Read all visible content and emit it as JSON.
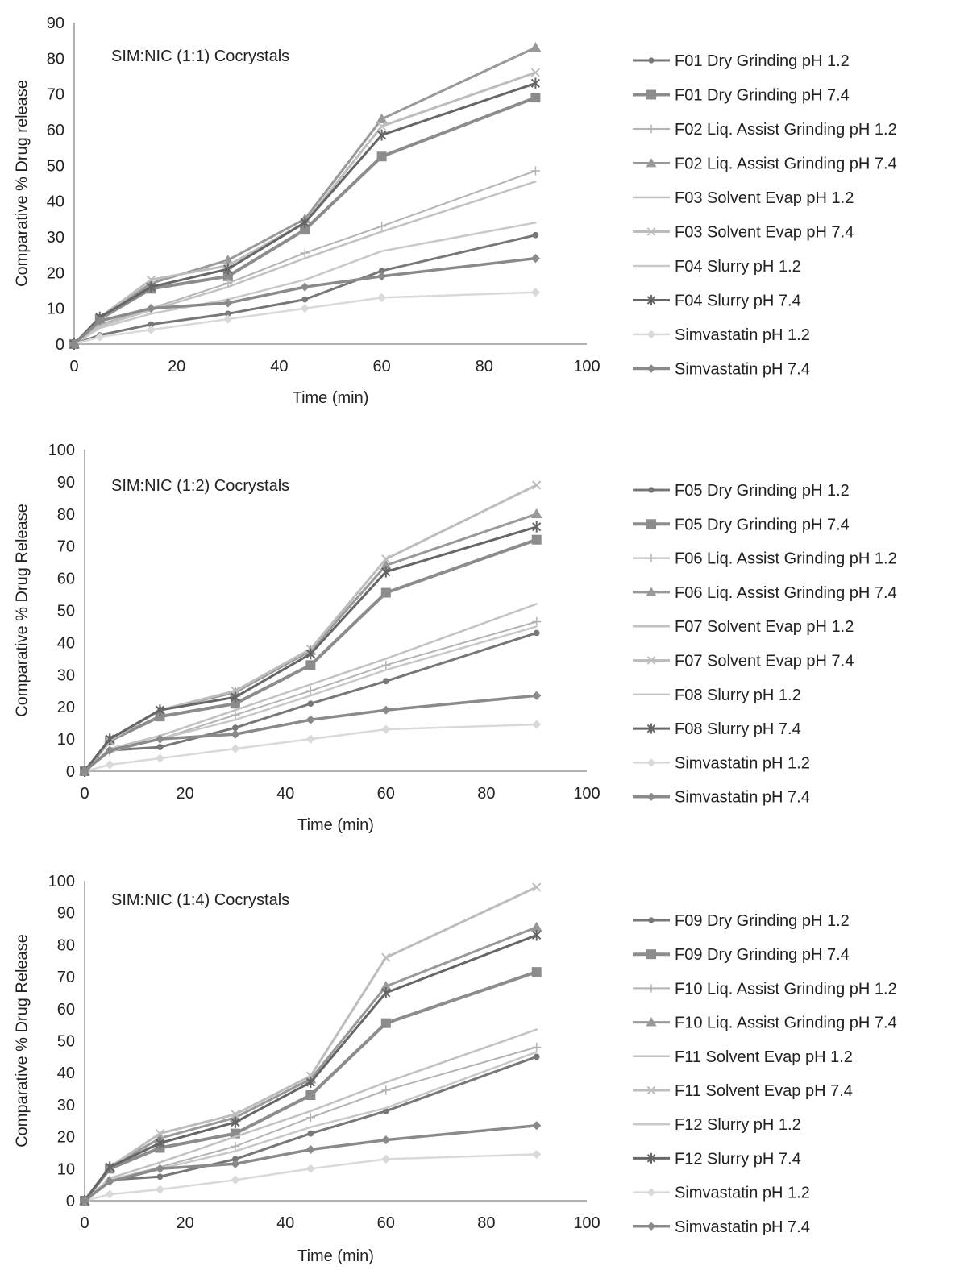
{
  "chart_data": [
    {
      "type": "line",
      "title": "SIM:NIC (1:1) Cocrystals",
      "xlabel": "Time (min)",
      "ylabel": "Comparative % Drug release",
      "x": [
        0,
        5,
        15,
        30,
        45,
        60,
        90
      ],
      "xlim": [
        0,
        100
      ],
      "ylim": [
        0,
        90
      ],
      "xticks": [
        "0",
        "20",
        "40",
        "60",
        "80",
        "100"
      ],
      "yticks": [
        "0",
        "10",
        "20",
        "30",
        "40",
        "50",
        "60",
        "70",
        "80",
        "90"
      ],
      "grid": false,
      "legend_position": "right",
      "series": [
        {
          "name": "F01 Dry Grinding pH 1.2",
          "values": [
            0,
            2.5,
            5.5,
            8.5,
            12.5,
            20.5,
            30.5
          ]
        },
        {
          "name": "F01 Dry Grinding pH 7.4",
          "values": [
            0,
            7,
            15.5,
            19,
            32,
            52.5,
            69
          ]
        },
        {
          "name": "F02 Liq. Assist Grinding pH 1.2",
          "values": [
            0,
            5.5,
            10,
            17,
            25.5,
            33,
            48.5
          ]
        },
        {
          "name": "F02 Liq. Assist Grinding pH 7.4",
          "values": [
            0,
            7,
            17,
            23.5,
            35,
            63,
            83
          ]
        },
        {
          "name": "F03 Solvent Evap pH 1.2",
          "values": [
            0,
            5,
            9.5,
            16,
            24,
            31.5,
            45.5
          ]
        },
        {
          "name": "F03 Solvent Evap pH 7.4",
          "values": [
            0,
            7.5,
            18,
            22,
            34,
            61,
            76
          ]
        },
        {
          "name": "F04 Slurry pH 1.2",
          "values": [
            0,
            4.5,
            8.5,
            12.5,
            18,
            26,
            34
          ]
        },
        {
          "name": "F04 Slurry pH 7.4",
          "values": [
            0,
            7.5,
            16,
            21,
            34,
            58.5,
            73
          ]
        },
        {
          "name": "Simvastatin pH 1.2",
          "values": [
            0,
            2,
            4,
            7,
            10,
            13,
            14.5
          ]
        },
        {
          "name": "Simvastatin pH 7.4",
          "values": [
            0,
            6.5,
            10,
            11.5,
            16,
            19,
            24
          ]
        }
      ]
    },
    {
      "type": "line",
      "title": "SIM:NIC (1:2) Cocrystals",
      "xlabel": "Time (min)",
      "ylabel": "Comparative % Drug Release",
      "x": [
        0,
        5,
        15,
        30,
        45,
        60,
        90
      ],
      "xlim": [
        0,
        100
      ],
      "ylim": [
        0,
        100
      ],
      "xticks": [
        "0",
        "20",
        "40",
        "60",
        "80",
        "100"
      ],
      "yticks": [
        "0",
        "10",
        "20",
        "30",
        "40",
        "50",
        "60",
        "70",
        "80",
        "90",
        "100"
      ],
      "grid": false,
      "legend_position": "right",
      "series": [
        {
          "name": "F05 Dry Grinding pH 1.2",
          "values": [
            0,
            6.5,
            7.5,
            13.5,
            21,
            28,
            43
          ]
        },
        {
          "name": "F05 Dry Grinding pH 7.4",
          "values": [
            0,
            9.5,
            17,
            21,
            33,
            55.5,
            72
          ]
        },
        {
          "name": "F06 Liq. Assist Grinding pH 1.2",
          "values": [
            0,
            6,
            10,
            17.5,
            25,
            33,
            46.5
          ]
        },
        {
          "name": "F06 Liq. Assist Grinding pH 7.4",
          "values": [
            0,
            10,
            19,
            24.5,
            37.5,
            64,
            80
          ]
        },
        {
          "name": "F07 Solvent Evap pH 1.2",
          "values": [
            0,
            7,
            11,
            19,
            27,
            35,
            52
          ]
        },
        {
          "name": "F07 Solvent Evap pH 7.4",
          "values": [
            0,
            9.5,
            19,
            25,
            38,
            66,
            89
          ]
        },
        {
          "name": "F08 Slurry pH 1.2",
          "values": [
            0,
            6.5,
            10,
            16,
            23.5,
            31.5,
            45
          ]
        },
        {
          "name": "F08 Slurry pH 7.4",
          "values": [
            0,
            10,
            19,
            23,
            36.5,
            62,
            76
          ]
        },
        {
          "name": "Simvastatin pH 1.2",
          "values": [
            0,
            2,
            4,
            7,
            10,
            13,
            14.5
          ]
        },
        {
          "name": "Simvastatin pH 7.4",
          "values": [
            0,
            6.5,
            10,
            11.5,
            16,
            19,
            23.5
          ]
        }
      ]
    },
    {
      "type": "line",
      "title": "SIM:NIC (1:4) Cocrystals",
      "xlabel": "Time (min)",
      "ylabel": "Comparative % Drug Release",
      "x": [
        0,
        5,
        15,
        30,
        45,
        60,
        90
      ],
      "xlim": [
        0,
        100
      ],
      "ylim": [
        0,
        100
      ],
      "xticks": [
        "0",
        "20",
        "40",
        "60",
        "80",
        "100"
      ],
      "yticks": [
        "0",
        "10",
        "20",
        "30",
        "40",
        "50",
        "60",
        "70",
        "80",
        "90",
        "100"
      ],
      "grid": false,
      "legend_position": "right",
      "series": [
        {
          "name": "F09 Dry Grinding pH 1.2",
          "values": [
            0,
            6.5,
            7.5,
            13,
            21,
            28,
            45
          ]
        },
        {
          "name": "F09 Dry Grinding pH 7.4",
          "values": [
            0,
            10,
            16.5,
            21,
            33,
            55.5,
            71.5
          ]
        },
        {
          "name": "F10 Liq. Assist Grinding pH 1.2",
          "values": [
            0,
            6.5,
            10.5,
            17,
            26,
            34.5,
            48
          ]
        },
        {
          "name": "F10 Liq. Assist Grinding pH 7.4",
          "values": [
            0,
            10.5,
            19.5,
            26,
            38,
            67,
            85.5
          ]
        },
        {
          "name": "F11 Solvent Evap pH 1.2",
          "values": [
            0,
            7,
            12,
            20,
            28,
            37,
            53.5
          ]
        },
        {
          "name": "F11 Solvent Evap pH 7.4",
          "values": [
            0,
            10.5,
            21,
            27,
            39,
            76,
            98
          ]
        },
        {
          "name": "F12 Slurry pH 1.2",
          "values": [
            0,
            6.5,
            10,
            15.5,
            23,
            29,
            46.5
          ]
        },
        {
          "name": "F12 Slurry pH 7.4",
          "values": [
            0,
            10.5,
            18,
            24.5,
            37,
            65,
            83
          ]
        },
        {
          "name": "Simvastatin pH 1.2",
          "values": [
            0,
            2,
            3.5,
            6.5,
            10,
            13,
            14.5
          ]
        },
        {
          "name": "Simvastatin pH 7.4",
          "values": [
            0,
            6,
            10,
            11.5,
            16,
            19,
            23.5
          ]
        }
      ]
    }
  ]
}
